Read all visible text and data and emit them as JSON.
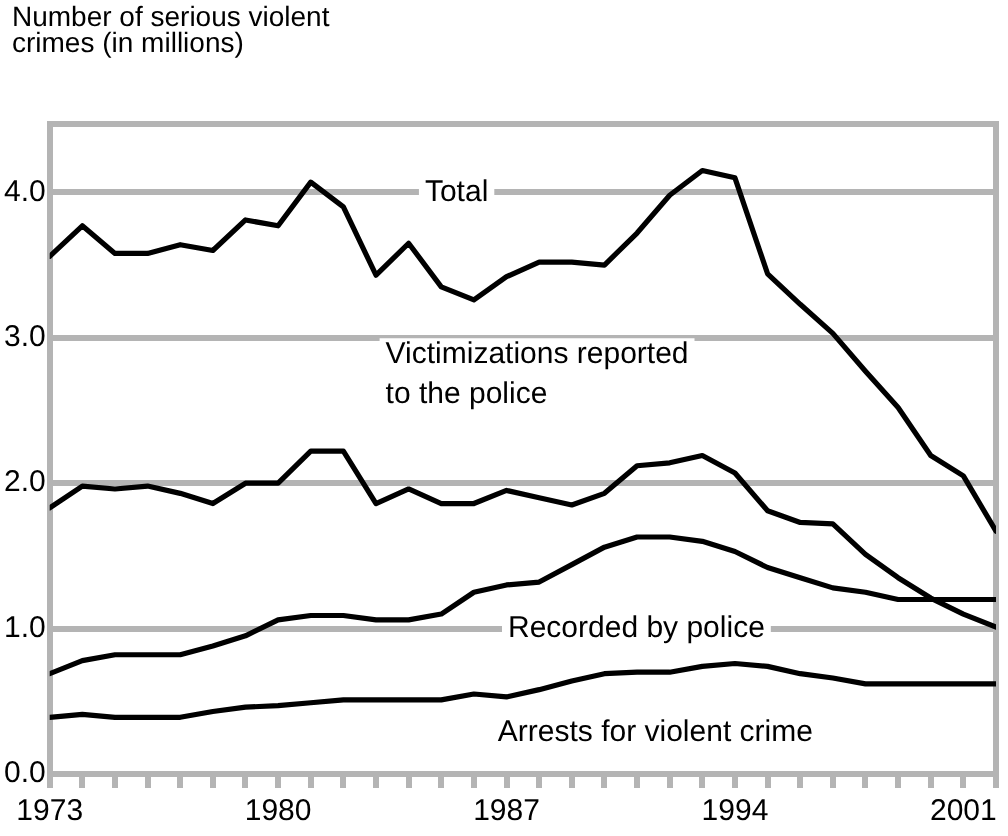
{
  "chart_data": {
    "type": "line",
    "ylabel": "Number of serious violent\ncrimes (in millions)",
    "x": [
      1973,
      1974,
      1975,
      1976,
      1977,
      1978,
      1979,
      1980,
      1981,
      1982,
      1983,
      1984,
      1985,
      1986,
      1987,
      1988,
      1989,
      1990,
      1991,
      1992,
      1993,
      1994,
      1995,
      1996,
      1997,
      1998,
      1999,
      2000,
      2001,
      2002
    ],
    "series": [
      {
        "name": "Total",
        "color": "#000000",
        "values": [
          3.56,
          3.77,
          3.58,
          3.58,
          3.64,
          3.6,
          3.81,
          3.77,
          4.07,
          3.9,
          3.43,
          3.65,
          3.35,
          3.26,
          3.42,
          3.52,
          3.52,
          3.5,
          3.72,
          3.98,
          4.15,
          4.1,
          3.44,
          3.23,
          3.03,
          2.77,
          2.52,
          2.19,
          2.05,
          1.67
        ]
      },
      {
        "name": "Victimizations reported\nto the police",
        "color": "#000000",
        "values": [
          1.83,
          1.98,
          1.96,
          1.98,
          1.93,
          1.86,
          2.0,
          2.0,
          2.22,
          2.22,
          1.86,
          1.96,
          1.86,
          1.86,
          1.95,
          1.9,
          1.85,
          1.93,
          2.12,
          2.14,
          2.19,
          2.07,
          1.81,
          1.73,
          1.72,
          1.51,
          1.35,
          1.21,
          1.1,
          1.01
        ]
      },
      {
        "name": "Recorded by police",
        "color": "#000000",
        "values": [
          0.69,
          0.78,
          0.82,
          0.82,
          0.82,
          0.88,
          0.95,
          1.06,
          1.09,
          1.09,
          1.06,
          1.06,
          1.1,
          1.25,
          1.3,
          1.32,
          1.44,
          1.56,
          1.63,
          1.63,
          1.6,
          1.53,
          1.42,
          1.35,
          1.28,
          1.25,
          1.2,
          1.2,
          1.2,
          1.2
        ]
      },
      {
        "name": "Arrests for violent crime",
        "color": "#000000",
        "values": [
          0.39,
          0.41,
          0.39,
          0.39,
          0.39,
          0.43,
          0.46,
          0.47,
          0.49,
          0.51,
          0.51,
          0.51,
          0.51,
          0.55,
          0.53,
          0.58,
          0.64,
          0.69,
          0.7,
          0.7,
          0.74,
          0.76,
          0.74,
          0.69,
          0.66,
          0.62,
          0.62,
          0.62,
          0.62,
          0.62
        ]
      }
    ],
    "xlim": [
      1973,
      2002
    ],
    "xticks": [
      1973,
      {
        "value": 1974,
        "label": null
      },
      {
        "value": 1975,
        "label": null
      },
      {
        "value": 1976,
        "label": null
      },
      {
        "value": 1977,
        "label": null
      },
      {
        "value": 1978,
        "label": null
      },
      {
        "value": 1979,
        "label": null
      },
      1980,
      {
        "value": 1981,
        "label": null
      },
      {
        "value": 1982,
        "label": null
      },
      {
        "value": 1983,
        "label": null
      },
      {
        "value": 1984,
        "label": null
      },
      {
        "value": 1985,
        "label": null
      },
      {
        "value": 1986,
        "label": null
      },
      1987,
      {
        "value": 1988,
        "label": null
      },
      {
        "value": 1989,
        "label": null
      },
      {
        "value": 1990,
        "label": null
      },
      {
        "value": 1991,
        "label": null
      },
      {
        "value": 1992,
        "label": null
      },
      {
        "value": 1993,
        "label": null
      },
      1994,
      {
        "value": 1995,
        "label": null
      },
      {
        "value": 1996,
        "label": null
      },
      {
        "value": 1997,
        "label": null
      },
      {
        "value": 1998,
        "label": null
      },
      {
        "value": 1999,
        "label": null
      },
      {
        "value": 2000,
        "label": null
      },
      2001,
      {
        "value": 2002,
        "label": null
      }
    ],
    "ylim": [
      0,
      4.47
    ],
    "yticks": [
      {
        "value": 0,
        "label": "0.0"
      },
      {
        "value": 1,
        "label": "1.0"
      },
      {
        "value": 2,
        "label": "2.0"
      },
      {
        "value": 3,
        "label": "3.0"
      },
      {
        "value": 4,
        "label": "4.0"
      }
    ],
    "grid": "y",
    "marker": "none",
    "line_style": "solid",
    "legend": false
  }
}
